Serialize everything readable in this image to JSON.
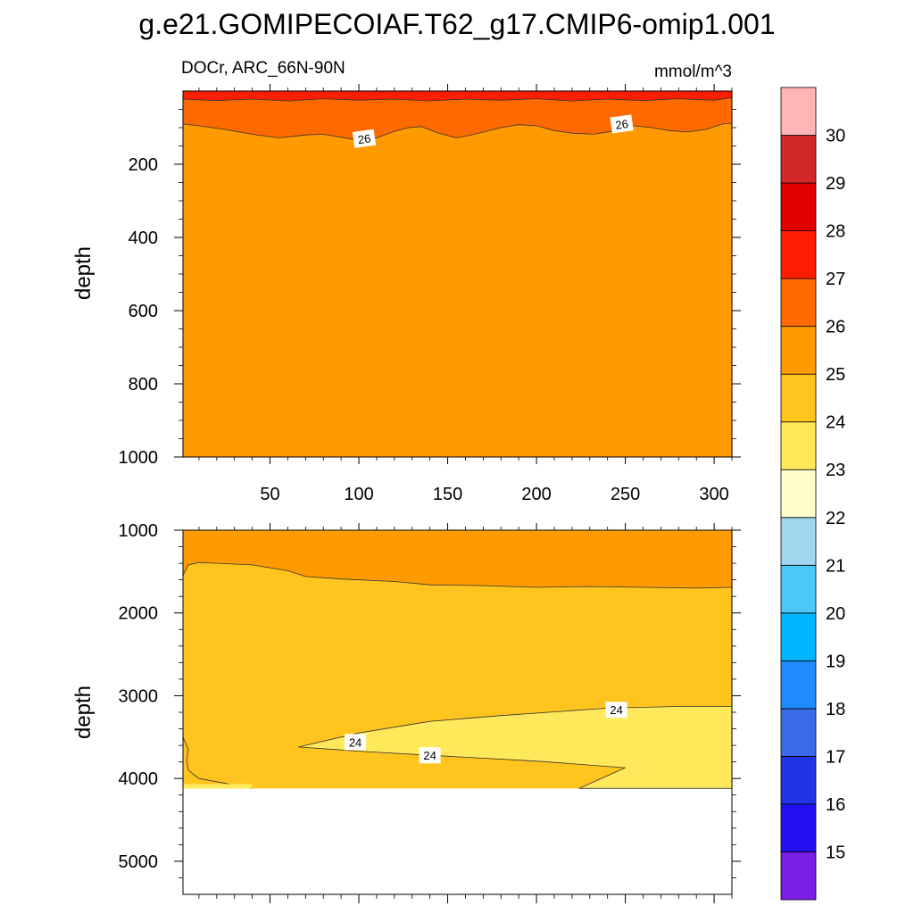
{
  "chart_data": {
    "type": "contour",
    "title": "g.e21.GOMIPECOIAF.T62_g17.CMIP6-omip1.001",
    "subtitle_left": "DOCr, ARC_66N-90N",
    "units": "mmol/m^3",
    "ylabel": "depth",
    "x_ticks": [
      50,
      100,
      150,
      200,
      250,
      300
    ],
    "xlim": [
      1,
      310
    ],
    "top_panel": {
      "ylim": [
        0,
        1000
      ],
      "y_ticks": [
        200,
        400,
        600,
        800,
        1000
      ],
      "contour_labels": [
        {
          "text": "26",
          "x": 103,
          "depth": 130
        },
        {
          "text": "26",
          "x": 248,
          "depth": 90
        }
      ],
      "contour_26_depth": [
        [
          1,
          90
        ],
        [
          10,
          95
        ],
        [
          25,
          105
        ],
        [
          40,
          118
        ],
        [
          55,
          128
        ],
        [
          70,
          120
        ],
        [
          80,
          118
        ],
        [
          90,
          126
        ],
        [
          100,
          135
        ],
        [
          110,
          128
        ],
        [
          120,
          110
        ],
        [
          128,
          100
        ],
        [
          135,
          97
        ],
        [
          145,
          115
        ],
        [
          155,
          128
        ],
        [
          165,
          118
        ],
        [
          180,
          100
        ],
        [
          190,
          92
        ],
        [
          200,
          95
        ],
        [
          210,
          108
        ],
        [
          220,
          115
        ],
        [
          232,
          118
        ],
        [
          245,
          108
        ],
        [
          255,
          95
        ],
        [
          265,
          100
        ],
        [
          275,
          108
        ],
        [
          285,
          112
        ],
        [
          295,
          105
        ],
        [
          305,
          90
        ],
        [
          310,
          88
        ]
      ],
      "contour_27_depth": [
        [
          1,
          22
        ],
        [
          20,
          26
        ],
        [
          40,
          22
        ],
        [
          60,
          27
        ],
        [
          80,
          21
        ],
        [
          100,
          25
        ],
        [
          120,
          22
        ],
        [
          140,
          27
        ],
        [
          160,
          22
        ],
        [
          180,
          25
        ],
        [
          200,
          21
        ],
        [
          220,
          27
        ],
        [
          240,
          22
        ],
        [
          260,
          26
        ],
        [
          280,
          21
        ],
        [
          300,
          25
        ],
        [
          310,
          18
        ]
      ],
      "fill_above_27": 27,
      "fill_26_27": 26,
      "fill_25_26": 25
    },
    "bottom_panel": {
      "ylim": [
        1000,
        5400
      ],
      "y_ticks": [
        1000,
        2000,
        3000,
        4000,
        5000
      ],
      "bottom_depth": 4120,
      "contour_labels": [
        {
          "text": "24",
          "x": 98,
          "depth": 3560
        },
        {
          "text": "24",
          "x": 140,
          "depth": 3720
        },
        {
          "text": "24",
          "x": 245,
          "depth": 3170
        }
      ],
      "contour_25_depth": [
        [
          1,
          1550
        ],
        [
          4,
          1420
        ],
        [
          10,
          1390
        ],
        [
          20,
          1400
        ],
        [
          40,
          1420
        ],
        [
          60,
          1490
        ],
        [
          70,
          1560
        ],
        [
          90,
          1590
        ],
        [
          120,
          1620
        ],
        [
          140,
          1660
        ],
        [
          170,
          1670
        ],
        [
          200,
          1690
        ],
        [
          230,
          1680
        ],
        [
          260,
          1690
        ],
        [
          290,
          1700
        ],
        [
          310,
          1690
        ]
      ],
      "contour_24_region": [
        [
          66,
          3620
        ],
        [
          100,
          3450
        ],
        [
          140,
          3310
        ],
        [
          180,
          3240
        ],
        [
          240,
          3150
        ],
        [
          280,
          3130
        ],
        [
          310,
          3130
        ],
        [
          310,
          4120
        ],
        [
          224,
          4120
        ],
        [
          250,
          3870
        ],
        [
          200,
          3790
        ],
        [
          140,
          3720
        ],
        [
          100,
          3670
        ]
      ],
      "contour_24_left": [
        [
          1,
          4120
        ],
        [
          1,
          3500
        ],
        [
          4,
          3650
        ],
        [
          3,
          3780
        ],
        [
          4,
          3900
        ],
        [
          10,
          4000
        ],
        [
          25,
          4060
        ],
        [
          40,
          4120
        ]
      ],
      "fill_above": 25,
      "fill_middle": 24,
      "fill_lower": 23
    },
    "colorbar": {
      "labels": [
        "15",
        "16",
        "17",
        "18",
        "19",
        "20",
        "21",
        "22",
        "23",
        "24",
        "25",
        "26",
        "27",
        "28",
        "29",
        "30"
      ],
      "colors": [
        "#7a1ee6",
        "#2410f5",
        "#2333e6",
        "#396be8",
        "#1e8cff",
        "#00b4ff",
        "#4bc8f6",
        "#a0d7ee",
        "#ffffcc",
        "#ffe95b",
        "#ffc41e",
        "#ff9a00",
        "#ff6a00",
        "#ff1e00",
        "#e10000",
        "#d22828",
        "#ffb5b5"
      ]
    }
  }
}
